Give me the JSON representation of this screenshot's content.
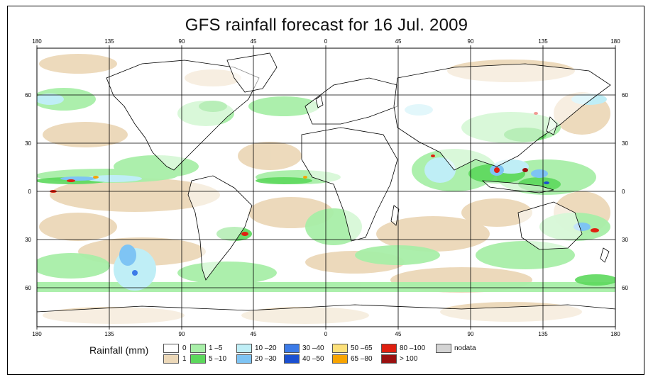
{
  "title": "GFS rainfall forecast for 16 Jul. 2009",
  "map": {
    "lon_labels": [
      "180",
      "135",
      "90",
      "45",
      "0",
      "45",
      "90",
      "135",
      "180"
    ],
    "lat_labels": [
      "60",
      "30",
      "0",
      "30",
      "60"
    ]
  },
  "legend": {
    "title": "Rainfall (mm)",
    "items": [
      {
        "label": "0",
        "color": "#ffffff"
      },
      {
        "label": "1",
        "color": "#ecd8b8"
      },
      {
        "label": "1 –5",
        "color": "#a8efa8"
      },
      {
        "label": "5 –10",
        "color": "#5cd85c"
      },
      {
        "label": "10 –20",
        "color": "#bfeef6"
      },
      {
        "label": "20 –30",
        "color": "#7ec4f4"
      },
      {
        "label": "30 –40",
        "color": "#3c7be8"
      },
      {
        "label": "40 –50",
        "color": "#1a4fd0"
      },
      {
        "label": "50 –65",
        "color": "#fce07a"
      },
      {
        "label": "65 –80",
        "color": "#f8a400"
      },
      {
        "label": "80 –100",
        "color": "#e02010"
      },
      {
        "label": "> 100",
        "color": "#9a1010"
      },
      {
        "label": "nodata",
        "color": "#d4d4d4"
      }
    ]
  }
}
